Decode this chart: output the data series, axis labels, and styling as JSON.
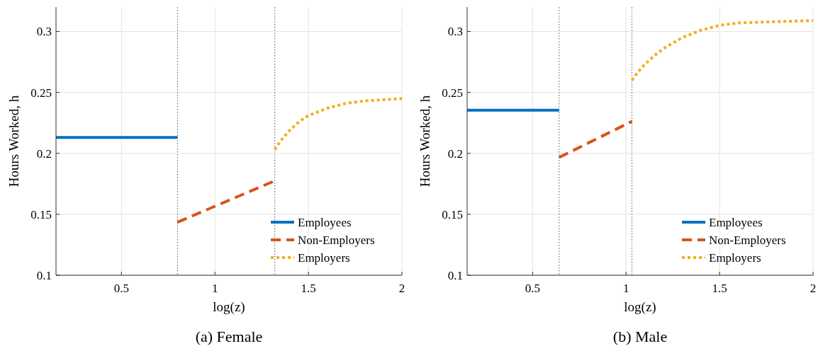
{
  "chart_data": [
    {
      "type": "line",
      "title": "(a) Female",
      "xlabel": "log(z)",
      "ylabel": "Hours Worked, h",
      "xlim": [
        0.15,
        2
      ],
      "ylim": [
        0.1,
        0.32
      ],
      "xticks": [
        0.5,
        1,
        1.5,
        2
      ],
      "yticks": [
        0.1,
        0.15,
        0.2,
        0.25,
        0.3
      ],
      "grid": true,
      "legend": "bottom right",
      "ref_lines": [
        {
          "axis": "x",
          "value": 0.8,
          "color": "#555555",
          "line_style": "dotted"
        },
        {
          "axis": "x",
          "value": 1.32,
          "color": "#555555",
          "line_style": "dotted"
        }
      ],
      "series": [
        {
          "name": "Employees",
          "color": "#0072bd",
          "line_style": "solid",
          "x": [
            0.15,
            0.8
          ],
          "values": [
            0.213,
            0.213
          ]
        },
        {
          "name": "Non-Employers",
          "color": "#d95319",
          "line_style": "dashed",
          "x": [
            0.8,
            1.32
          ],
          "values": [
            0.1435,
            0.1775
          ]
        },
        {
          "name": "Employers",
          "color": "#edb120",
          "line_style": "dotted",
          "x": [
            1.32,
            1.35,
            1.4,
            1.45,
            1.5,
            1.6,
            1.7,
            1.8,
            1.9,
            2
          ],
          "values": [
            0.203,
            0.21,
            0.219,
            0.226,
            0.231,
            0.237,
            0.241,
            0.243,
            0.244,
            0.245
          ]
        }
      ]
    },
    {
      "type": "line",
      "title": "(b) Male",
      "xlabel": "log(z)",
      "ylabel": "Hours Worked, h",
      "xlim": [
        0.15,
        2
      ],
      "ylim": [
        0.1,
        0.32
      ],
      "xticks": [
        0.5,
        1,
        1.5,
        2
      ],
      "yticks": [
        0.1,
        0.15,
        0.2,
        0.25,
        0.3
      ],
      "grid": true,
      "legend": "bottom right",
      "ref_lines": [
        {
          "axis": "x",
          "value": 0.642,
          "color": "#555555",
          "line_style": "dotted"
        },
        {
          "axis": "x",
          "value": 1.031,
          "color": "#555555",
          "line_style": "dotted"
        }
      ],
      "series": [
        {
          "name": "Employees",
          "color": "#0072bd",
          "line_style": "solid",
          "x": [
            0.15,
            0.642
          ],
          "values": [
            0.2354,
            0.2354
          ]
        },
        {
          "name": "Non-Employers",
          "color": "#d95319",
          "line_style": "dashed",
          "x": [
            0.642,
            1.031
          ],
          "values": [
            0.1967,
            0.2262
          ]
        },
        {
          "name": "Employers",
          "color": "#edb120",
          "line_style": "dotted",
          "x": [
            1.031,
            1.06,
            1.1,
            1.15,
            1.2,
            1.3,
            1.4,
            1.5,
            1.6,
            1.8,
            2
          ],
          "values": [
            0.26,
            0.266,
            0.273,
            0.28,
            0.286,
            0.295,
            0.301,
            0.305,
            0.307,
            0.308,
            0.309
          ]
        }
      ]
    }
  ]
}
